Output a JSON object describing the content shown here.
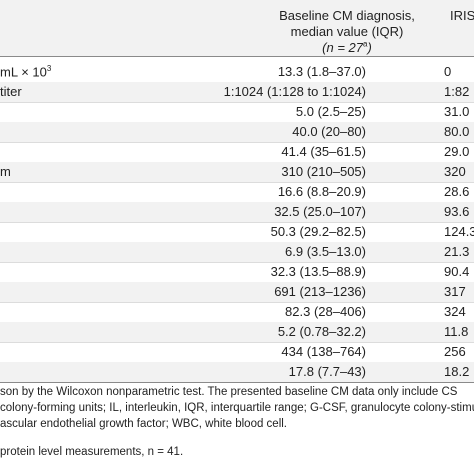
{
  "header": {
    "baseline_line1": "Baseline CM diagnosis,",
    "baseline_line2": "median value (IQR)",
    "baseline_n_prefix": "(n = 27",
    "baseline_n_sup": "a",
    "baseline_n_suffix": ")",
    "iris_label": "IRIS"
  },
  "rows": [
    {
      "label": "mL × 10",
      "label_sup": "3",
      "baseline": "13.3 (1.8–37.0)",
      "iris": "0"
    },
    {
      "label": "titer",
      "baseline": "1:1024 (1:128 to 1:1024)",
      "iris": "1:82"
    },
    {
      "label": "",
      "baseline": "5.0 (2.5–25)",
      "iris": "31.0"
    },
    {
      "label": "",
      "baseline": "40.0 (20–80)",
      "iris": "80.0"
    },
    {
      "label": "",
      "baseline": "41.4 (35–61.5)",
      "iris": "29.0"
    },
    {
      "label": "m",
      "baseline": "310 (210–505)",
      "iris": "320"
    },
    {
      "label": "",
      "baseline": "16.6 (8.8–20.9)",
      "iris": "28.6"
    },
    {
      "label": "",
      "baseline": "32.5 (25.0–107)",
      "iris": "93.6"
    },
    {
      "label": "",
      "baseline": "50.3 (29.2–82.5)",
      "iris": "124.3"
    },
    {
      "label": "",
      "baseline": "6.9 (3.5–13.0)",
      "iris": "21.3"
    },
    {
      "label": "",
      "baseline": "32.3 (13.5–88.9)",
      "iris": "90.4"
    },
    {
      "label": "",
      "baseline": "691 (213–1236)",
      "iris": "317"
    },
    {
      "label": "",
      "baseline": "82.3 (28–406)",
      "iris": "324"
    },
    {
      "label": "",
      "baseline": "5.2 (0.78–32.2)",
      "iris": "11.8"
    },
    {
      "label": "",
      "baseline": "434 (138–764)",
      "iris": "256"
    },
    {
      "label": "",
      "baseline": "17.8 (7.7–43)",
      "iris": "18.2"
    }
  ],
  "footnotes": {
    "line1": "son by the Wilcoxon nonparametric test. The presented baseline CM data only include CS",
    "line2": "colony-forming units; IL, interleukin, IQR, interquartile range; G-CSF, granulocyte colony-stimu",
    "line3": "ascular endothelial growth factor; WBC, white blood cell.",
    "line4": "protein level measurements, n = 41."
  }
}
